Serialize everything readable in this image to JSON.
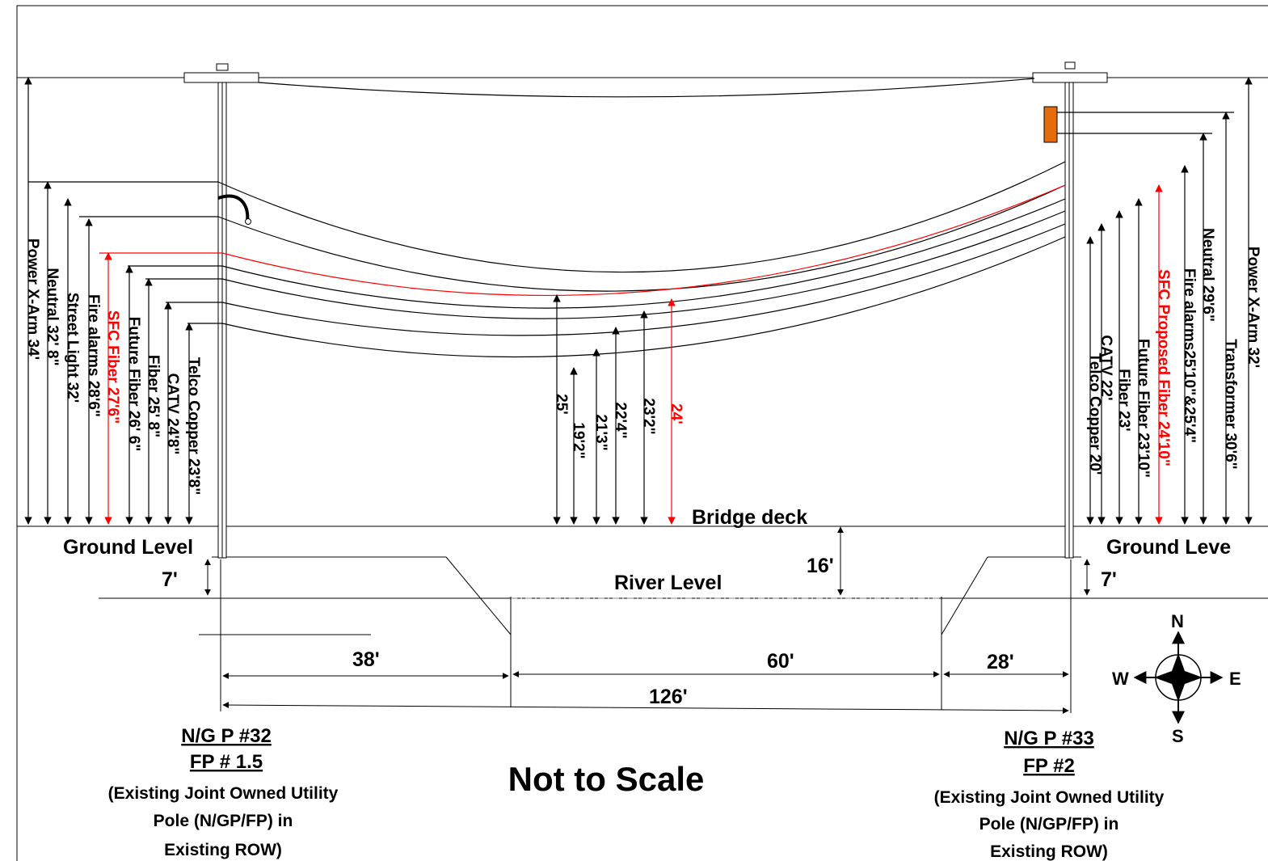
{
  "labels": {
    "bridge_deck": "Bridge deck",
    "ground_level_left": "Ground Level",
    "ground_level_right": "Ground Leve",
    "river_level": "River Level",
    "not_to_scale": "Not to Scale"
  },
  "left_pole": {
    "title": "N/G P #32",
    "subtitle": "FP # 1.5",
    "desc_line1": "(Existing Joint Owned Utility",
    "desc_line2": "Pole (N/GP/FP) in",
    "desc_line3": "Existing ROW)",
    "heights": [
      {
        "label": "Power X-Arm 34'"
      },
      {
        "label": "Neutral 32' 8\""
      },
      {
        "label": "Street Light 32'"
      },
      {
        "label": "Fire alarms 28'6\""
      },
      {
        "label": "SFC  Fiber 27'6\"",
        "color": "#ff0000"
      },
      {
        "label": "Future Fiber 26' 6\""
      },
      {
        "label": "Fiber 25' 8\""
      },
      {
        "label": "CATV 24'8\""
      },
      {
        "label": "Telco Copper 23'8\""
      }
    ]
  },
  "right_pole": {
    "title": "N/G P #33",
    "subtitle": "FP #2",
    "desc_line1": "(Existing Joint Owned Utility",
    "desc_line2": "Pole (N/GP/FP) in",
    "desc_line3": "Existing ROW)",
    "heights": [
      {
        "label": "Telco Copper 20'"
      },
      {
        "label": "CATV 22'"
      },
      {
        "label": "Fiber 23'"
      },
      {
        "label": "Future Fiber 23'10\""
      },
      {
        "label": "SFC Proposed Fiber 24'10\"",
        "color": "#ff0000"
      },
      {
        "label": "Fire alarms25'10\"&25'4\""
      },
      {
        "label": "Neutral  29'6\""
      },
      {
        "label": "Transformer 30'6\""
      },
      {
        "label": "Power X-Arm 32'"
      }
    ]
  },
  "mid_clearances": [
    {
      "label": "25'"
    },
    {
      "label": "19'2\""
    },
    {
      "label": "21'3\""
    },
    {
      "label": "22'4\""
    },
    {
      "label": "23'2\""
    },
    {
      "label": "24'",
      "color": "#ff0000"
    }
  ],
  "dimensions": {
    "ground_to_river_left": "7'",
    "ground_to_river_right": "7'",
    "deck_to_river": "16'",
    "span_left": "38'",
    "span_middle": "60'",
    "span_right": "28'",
    "span_total": "126'"
  },
  "compass": {
    "n": "N",
    "s": "S",
    "e": "E",
    "w": "W"
  },
  "colors": {
    "sfc_fiber": "#ff0000",
    "transformer": "#e46c0a"
  }
}
